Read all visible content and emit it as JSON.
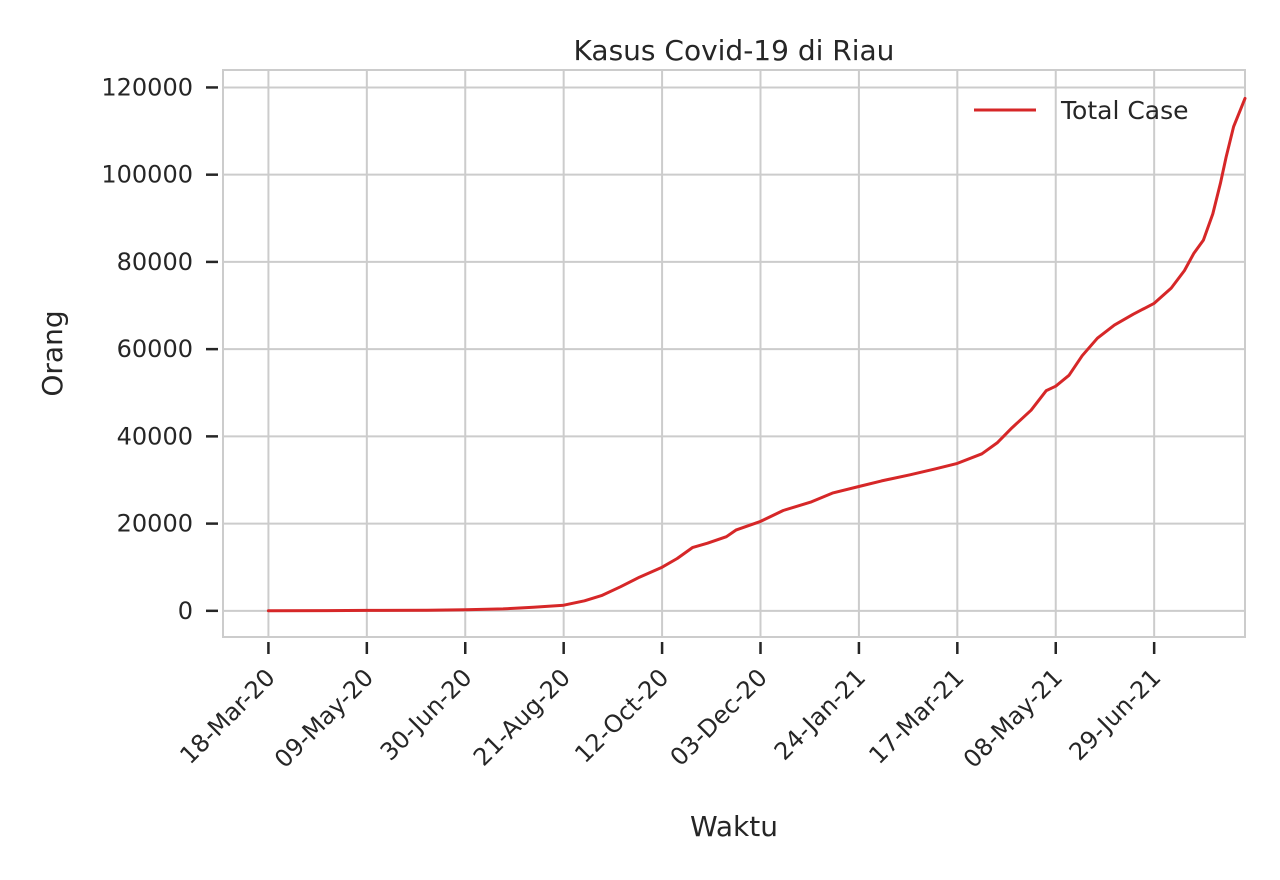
{
  "chart_data": {
    "type": "line",
    "title": "Kasus Covid-19 di Riau",
    "xlabel": "Waktu",
    "ylabel": "Orang",
    "x_ticks": [
      "18-Mar-20",
      "09-May-20",
      "30-Jun-20",
      "21-Aug-20",
      "12-Oct-20",
      "03-Dec-20",
      "24-Jan-21",
      "17-Mar-21",
      "08-May-21",
      "29-Jun-21"
    ],
    "y_ticks": [
      0,
      20000,
      40000,
      60000,
      80000,
      100000,
      120000
    ],
    "ylim": [
      -6000,
      124000
    ],
    "xlim": [
      "2020-02-23",
      "2021-08-16"
    ],
    "grid": true,
    "legend_position": "top-right",
    "colors": {
      "series": "#d62728",
      "grid": "#cccccc",
      "text": "#262626"
    },
    "series": [
      {
        "name": "Total Case",
        "color": "#d62728",
        "points": [
          [
            "2020-03-18",
            0
          ],
          [
            "2020-04-18",
            50
          ],
          [
            "2020-05-09",
            100
          ],
          [
            "2020-06-10",
            150
          ],
          [
            "2020-06-30",
            250
          ],
          [
            "2020-07-20",
            450
          ],
          [
            "2020-08-05",
            800
          ],
          [
            "2020-08-21",
            1300
          ],
          [
            "2020-09-01",
            2300
          ],
          [
            "2020-09-10",
            3500
          ],
          [
            "2020-09-20",
            5500
          ],
          [
            "2020-09-30",
            7700
          ],
          [
            "2020-10-12",
            10000
          ],
          [
            "2020-10-20",
            12000
          ],
          [
            "2020-10-28",
            14500
          ],
          [
            "2020-11-05",
            15500
          ],
          [
            "2020-11-15",
            17000
          ],
          [
            "2020-11-20",
            18500
          ],
          [
            "2020-12-03",
            20500
          ],
          [
            "2020-12-15",
            23000
          ],
          [
            "2020-12-30",
            25000
          ],
          [
            "2021-01-10",
            27000
          ],
          [
            "2021-01-24",
            28500
          ],
          [
            "2021-02-05",
            29800
          ],
          [
            "2021-02-20",
            31200
          ],
          [
            "2021-03-05",
            32500
          ],
          [
            "2021-03-17",
            33800
          ],
          [
            "2021-03-30",
            36000
          ],
          [
            "2021-04-07",
            38500
          ],
          [
            "2021-04-15",
            42000
          ],
          [
            "2021-04-25",
            46000
          ],
          [
            "2021-05-03",
            50500
          ],
          [
            "2021-05-08",
            51500
          ],
          [
            "2021-05-15",
            54000
          ],
          [
            "2021-05-22",
            58500
          ],
          [
            "2021-05-30",
            62500
          ],
          [
            "2021-06-08",
            65500
          ],
          [
            "2021-06-18",
            68000
          ],
          [
            "2021-06-29",
            70500
          ],
          [
            "2021-07-08",
            74000
          ],
          [
            "2021-07-15",
            78000
          ],
          [
            "2021-07-20",
            82000
          ],
          [
            "2021-07-25",
            85000
          ],
          [
            "2021-07-30",
            91000
          ],
          [
            "2021-08-03",
            98000
          ],
          [
            "2021-08-06",
            104000
          ],
          [
            "2021-08-10",
            111000
          ],
          [
            "2021-08-16",
            117500
          ]
        ]
      }
    ]
  }
}
